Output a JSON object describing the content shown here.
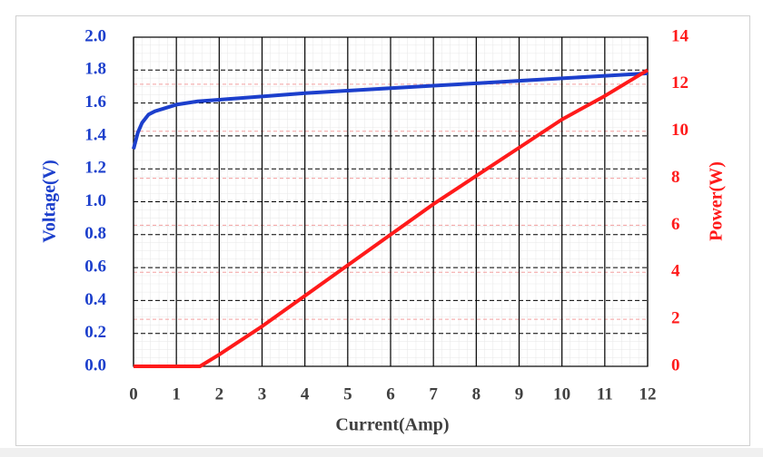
{
  "chart_data": {
    "type": "line",
    "x_label": "Current(Amp)",
    "y_label": "Voltage(V)",
    "y2_label": "Power(W)",
    "xlim": [
      0,
      12
    ],
    "xticks": [
      0,
      1,
      2,
      3,
      4,
      5,
      6,
      7,
      8,
      9,
      10,
      11,
      12
    ],
    "ylim": [
      0,
      2
    ],
    "yticks": [
      {
        "value": 0,
        "label": "0.0"
      },
      0.2,
      0.4,
      0.6,
      0.8,
      {
        "value": 1,
        "label": "1.0"
      },
      1.2,
      1.4,
      1.6,
      1.8,
      {
        "value": 2,
        "label": "2.0"
      }
    ],
    "y2lim": [
      0,
      14
    ],
    "y2ticks": [
      0,
      2,
      4,
      6,
      8,
      10,
      12,
      14
    ],
    "grid": true,
    "series": [
      {
        "color": "#1c3fcc",
        "axis": "y",
        "x": [
          0,
          0.1,
          0.2,
          0.35,
          0.5,
          1,
          1.5,
          2,
          3,
          4,
          5,
          6,
          7,
          8,
          9,
          10,
          11,
          12
        ],
        "values": [
          1.32,
          1.42,
          1.48,
          1.53,
          1.55,
          1.59,
          1.61,
          1.62,
          1.64,
          1.66,
          1.675,
          1.69,
          1.705,
          1.72,
          1.735,
          1.75,
          1.765,
          1.78
        ]
      },
      {
        "color": "#ff1a1a",
        "axis": "y2",
        "x": [
          0,
          1.55,
          2,
          3,
          4,
          5,
          6,
          7,
          8,
          9,
          10,
          11,
          12
        ],
        "values": [
          0,
          0,
          0.5,
          1.7,
          3.0,
          4.3,
          5.6,
          6.9,
          8.1,
          9.3,
          10.5,
          11.5,
          12.6
        ]
      }
    ]
  }
}
